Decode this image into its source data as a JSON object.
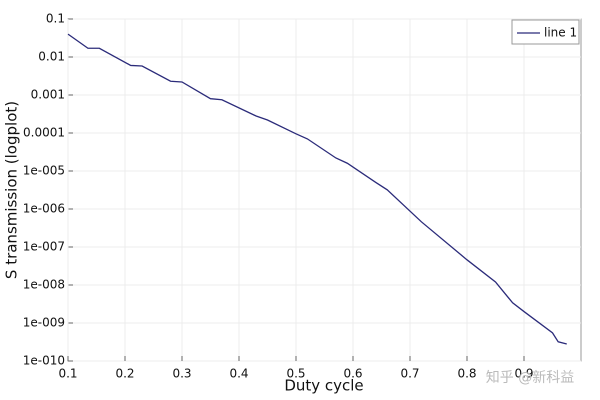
{
  "chart_data": {
    "type": "line",
    "log_scale_y": true,
    "grid": true,
    "legend": "upper right",
    "x_label": "Duty cycle",
    "y_label": "S transmission (logplot)",
    "watermark": "知乎 @新科益",
    "x": [
      0.1,
      0.135,
      0.155,
      0.21,
      0.23,
      0.28,
      0.3,
      0.35,
      0.37,
      0.43,
      0.45,
      0.5,
      0.52,
      0.57,
      0.59,
      0.64,
      0.66,
      0.72,
      0.8,
      0.85,
      0.88,
      0.9,
      0.95,
      0.96,
      0.975
    ],
    "series": [
      {
        "name": "line 1",
        "color": "#2b2b7a",
        "values": [
          0.04,
          0.017,
          0.017,
          0.006,
          0.0058,
          0.0023,
          0.0022,
          0.0008,
          0.00075,
          0.00028,
          0.00022,
          9.5e-05,
          7e-05,
          2.2e-05,
          1.6e-05,
          5e-06,
          3.2e-06,
          4.6e-07,
          4.6e-08,
          1.2e-08,
          3.4e-09,
          2e-09,
          5.5e-10,
          3.2e-10,
          2.8e-10
        ]
      }
    ],
    "xlim": [
      0.1,
      1.0
    ],
    "xticks": [
      0.1,
      0.2,
      0.3,
      0.4,
      0.5,
      0.6,
      0.7,
      0.8,
      0.9
    ],
    "ylim": [
      1e-10,
      0.1
    ],
    "yticks": [
      0.1,
      0.01,
      0.001,
      0.0001,
      {
        "value": 1e-05,
        "label": "1e-005"
      },
      {
        "value": 1e-06,
        "label": "1e-006"
      },
      {
        "value": 1e-07,
        "label": "1e-007"
      },
      {
        "value": 1e-08,
        "label": "1e-008"
      },
      {
        "value": 1e-09,
        "label": "1e-009"
      },
      {
        "value": 1e-10,
        "label": "1e-010"
      }
    ]
  }
}
